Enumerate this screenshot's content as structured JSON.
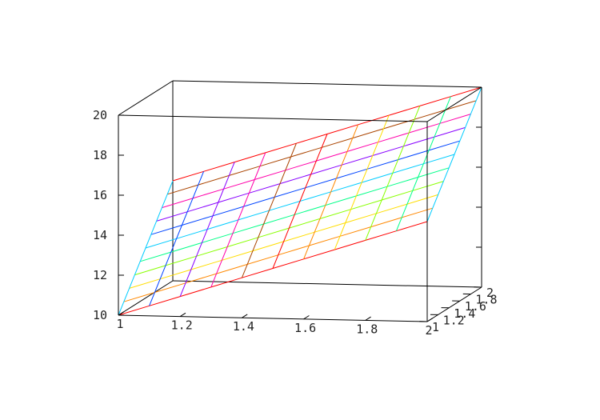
{
  "chart_data": {
    "type": "surface",
    "title": "",
    "xlabel": "",
    "ylabel": "",
    "zlabel": "",
    "xlim": [
      1,
      2
    ],
    "ylim": [
      1,
      2
    ],
    "zlim": [
      10,
      20
    ],
    "x_ticks": [
      "1",
      "1.2",
      "1.4",
      "1.6",
      "1.8",
      "2"
    ],
    "y_ticks": [
      "1",
      "1.2",
      "1.4",
      "1.6",
      "1.8",
      "2"
    ],
    "z_ticks": [
      "10",
      "12",
      "14",
      "16",
      "18",
      "20"
    ],
    "grid": false,
    "legend": "none",
    "surface": "z = 10 + 5*x + 5*y (rainbow-colored wireframe mesh)",
    "series_colors": [
      "#ff0000",
      "#ff8800",
      "#ffdd00",
      "#88ff00",
      "#00ff88",
      "#00ccff",
      "#0044ff",
      "#8800ff",
      "#ff00aa",
      "#aa4400"
    ]
  }
}
